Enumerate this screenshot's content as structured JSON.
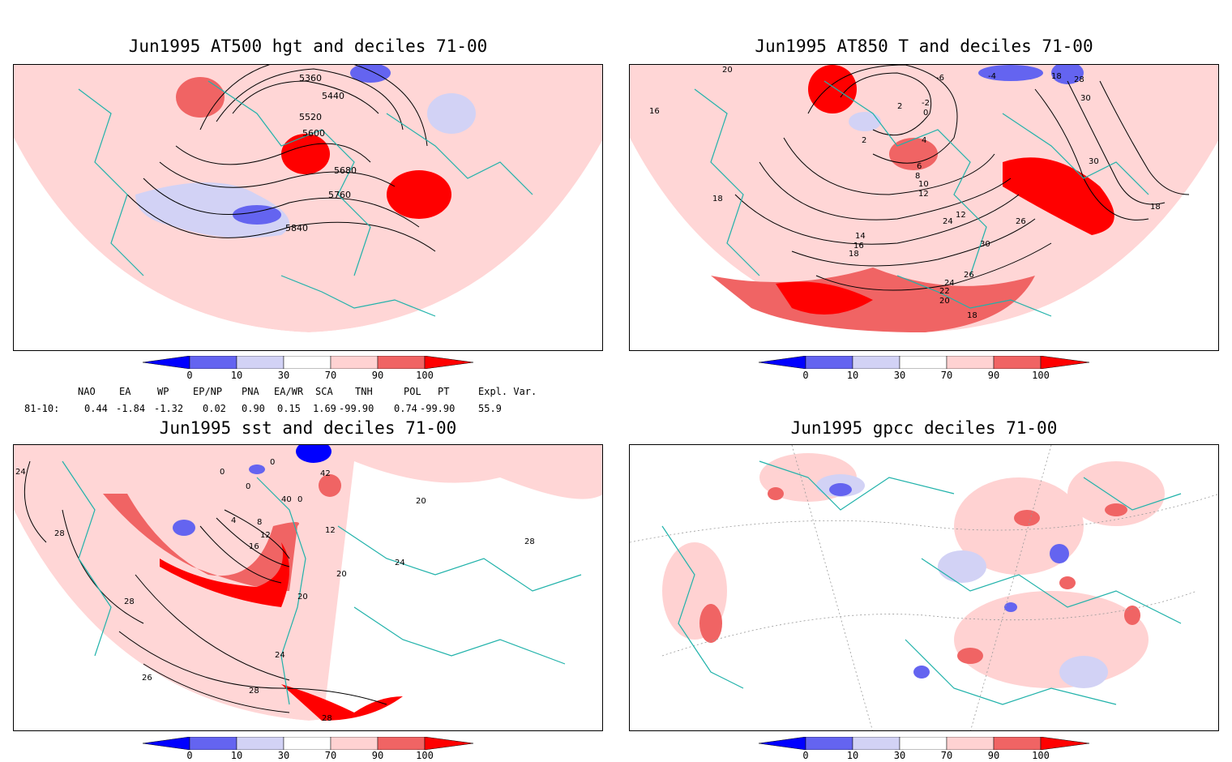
{
  "panels": [
    {
      "id": "p1",
      "title": "Jun1995 AT500 hgt and deciles 71-00",
      "contour_labels": [
        "5360",
        "5440",
        "5520",
        "5600",
        "5680",
        "5760",
        "5840"
      ]
    },
    {
      "id": "p2",
      "title": "Jun1995 AT850 T and deciles 71-00",
      "contour_labels": [
        "20",
        "16",
        "18",
        "-6",
        "-4",
        "18",
        "28",
        "2",
        "-2",
        "0",
        "30",
        "2",
        "4",
        "6",
        "8",
        "10",
        "12",
        "30",
        "14",
        "16",
        "18",
        "24",
        "12",
        "26",
        "30",
        "26",
        "24",
        "22",
        "20",
        "18",
        "18"
      ]
    },
    {
      "id": "p3",
      "title": "Jun1995 sst and deciles 71-00",
      "contour_labels": [
        "24",
        "28",
        "0",
        "0",
        "0",
        "42",
        "0",
        "40",
        "4",
        "8",
        "12",
        "16",
        "12",
        "20",
        "20",
        "24",
        "28",
        "28",
        "24",
        "26",
        "28",
        "28",
        "20"
      ]
    },
    {
      "id": "p4",
      "title": "Jun1995 gpcc deciles 71-00",
      "contour_labels": []
    }
  ],
  "colorbar": {
    "labels": [
      "0",
      "10",
      "30",
      "70",
      "90",
      "100"
    ],
    "colors": [
      "#0000ff",
      "#6464f0",
      "#d2d2f5",
      "#ffffff",
      "#ffd2d2",
      "#f06464",
      "#ff0000"
    ]
  },
  "indices": {
    "headers": [
      "NAO",
      "EA",
      "WP",
      "EP/NP",
      "PNA",
      "EA/WR",
      "SCA",
      "TNH",
      "POL",
      "PT",
      "Expl. Var."
    ],
    "row_label": "81-10:",
    "values": [
      "0.44",
      "-1.84",
      "-1.32",
      "0.02",
      "0.90",
      "0.15",
      "1.69",
      "-99.90",
      "0.74",
      "-99.90",
      "55.9"
    ]
  }
}
